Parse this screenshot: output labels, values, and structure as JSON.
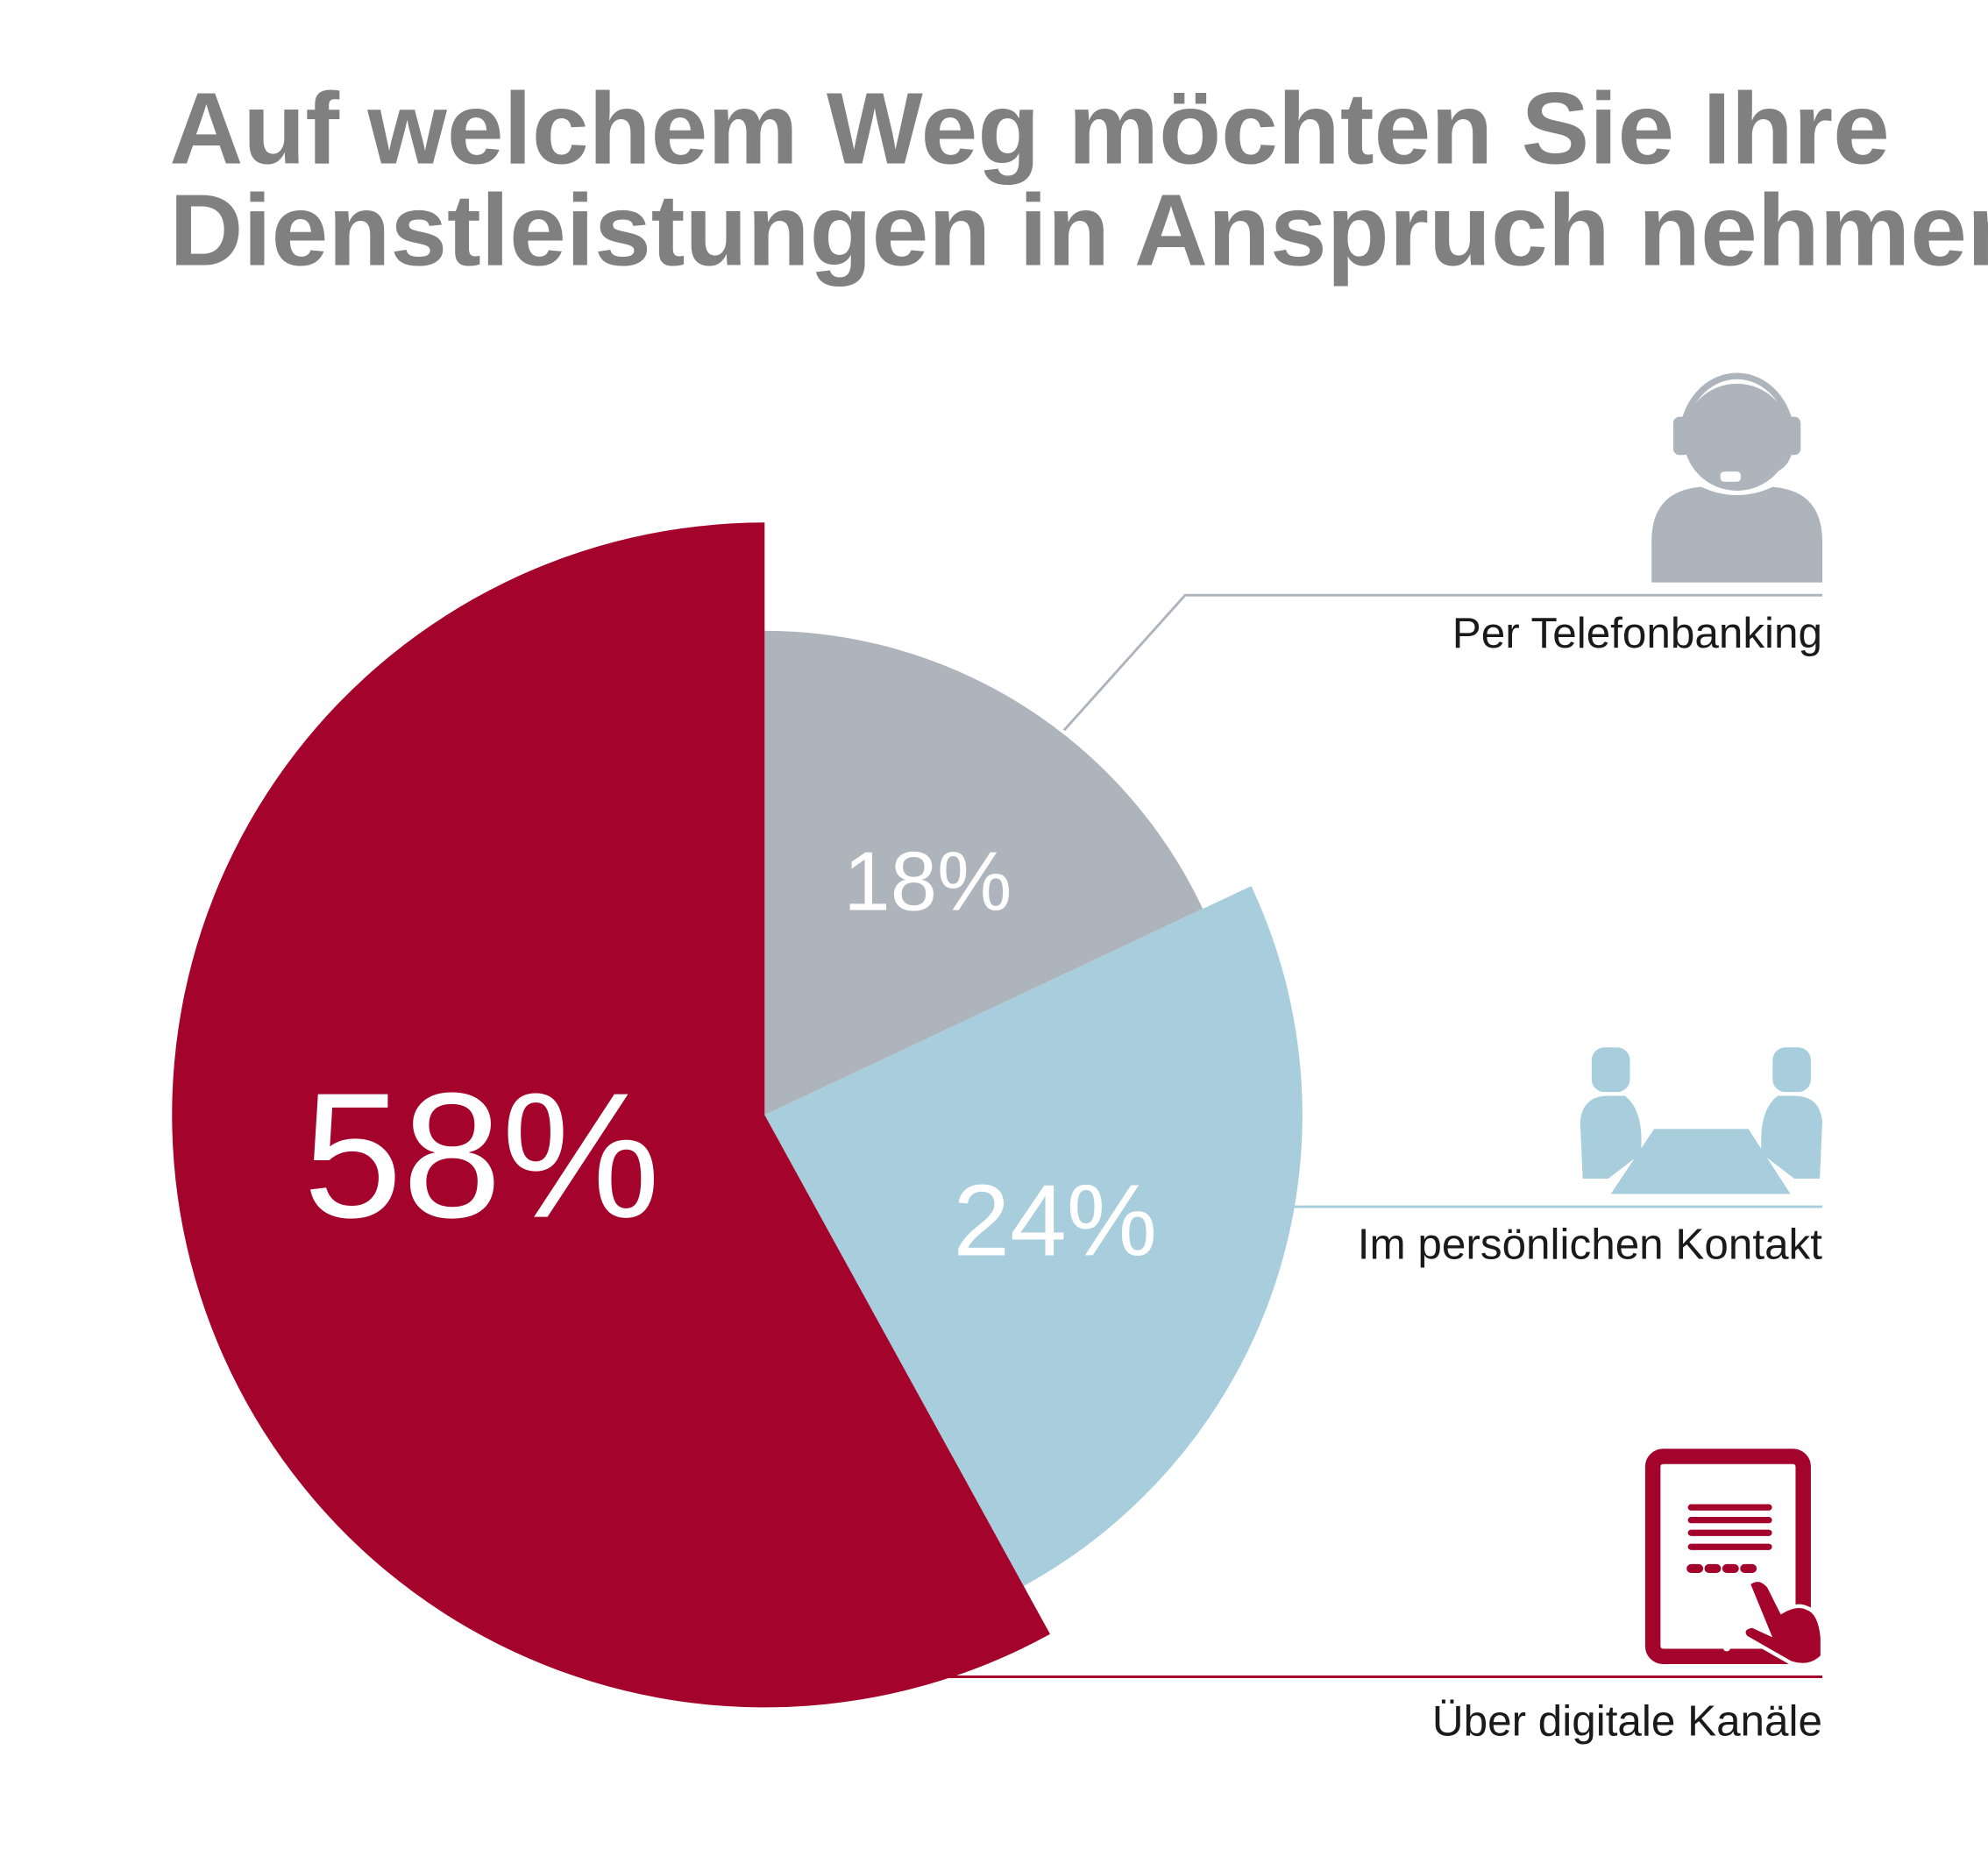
{
  "chart_data": {
    "type": "pie",
    "title": "Auf welchem Weg möchten Sie Ihre Dienstleistungen in Anspruch nehmen?",
    "title_lines": [
      "Auf welchem Weg möchten Sie Ihre",
      "Dienstleistungen in Anspruch nehmen?"
    ],
    "slices": [
      {
        "label": "Per Telefonbanking",
        "value": 18,
        "value_label": "18%",
        "color": "#AEB4BC",
        "icon": "headset-person-icon"
      },
      {
        "label": "Im persönlichen Kontakt",
        "value": 24,
        "value_label": "24%",
        "color": "#A8CDDC",
        "icon": "meeting-people-icon"
      },
      {
        "label": "Über digitale Kanäle",
        "value": 58,
        "value_label": "58%",
        "color": "#A4042B",
        "icon": "tablet-touch-icon"
      }
    ]
  }
}
